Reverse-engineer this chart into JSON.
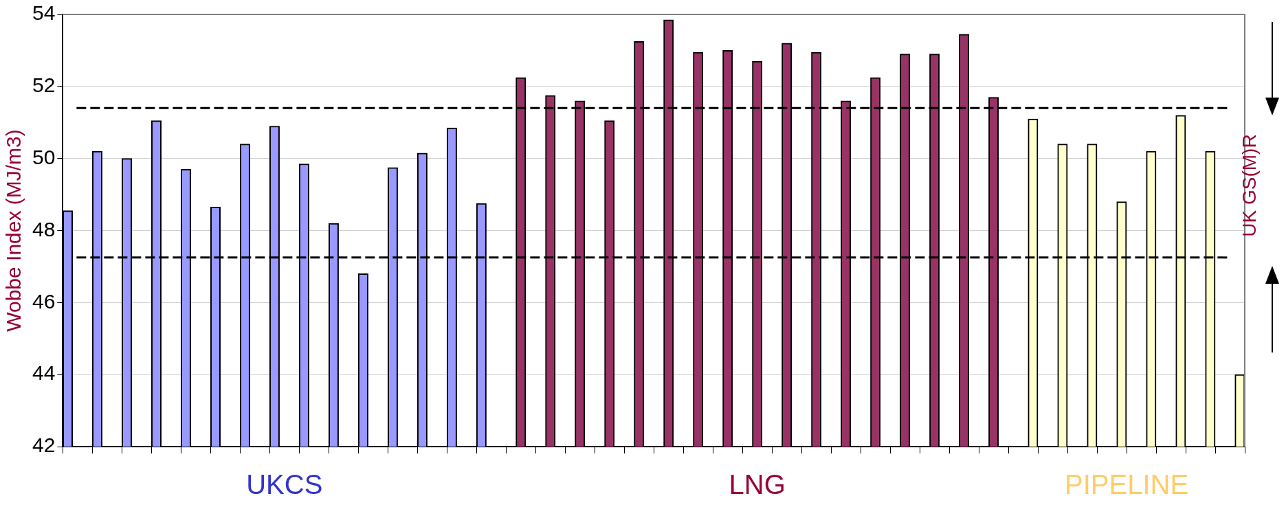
{
  "chart_data": {
    "type": "bar",
    "ylabel": "Wobbe Index (MJ/m3)",
    "categories": [
      null,
      null,
      null,
      null,
      null,
      null,
      null,
      null,
      null,
      null,
      null,
      null,
      null,
      null,
      null,
      null,
      null,
      null,
      null,
      null,
      null,
      null,
      null,
      null,
      null,
      null,
      null,
      null,
      null,
      null,
      null,
      null,
      null,
      null,
      null,
      null,
      null,
      null,
      null,
      null
    ],
    "series": [
      {
        "name": "UKCS",
        "color": "#9999ff",
        "values": [
          48.55,
          50.2,
          50.0,
          51.05,
          49.7,
          48.65,
          50.4,
          50.9,
          49.85,
          48.2,
          46.8,
          49.75,
          50.15,
          50.85,
          48.75,
          null,
          null,
          null,
          null,
          null,
          null,
          null,
          null,
          null,
          null,
          null,
          null,
          null,
          null,
          null,
          null,
          null,
          null,
          null,
          null,
          null,
          null,
          null,
          null,
          null
        ]
      },
      {
        "name": "LNG",
        "color": "#993366",
        "values": [
          null,
          null,
          null,
          null,
          null,
          null,
          null,
          null,
          null,
          null,
          null,
          null,
          null,
          null,
          null,
          52.25,
          51.75,
          51.6,
          51.05,
          53.25,
          53.85,
          52.95,
          53.0,
          52.7,
          53.2,
          52.95,
          51.6,
          52.25,
          52.9,
          52.9,
          53.45,
          51.7,
          null,
          null,
          null,
          null,
          null,
          null,
          null,
          null
        ]
      },
      {
        "name": "PIPELINE",
        "color": "#ffffcc",
        "values": [
          null,
          null,
          null,
          null,
          null,
          null,
          null,
          null,
          null,
          null,
          null,
          null,
          null,
          null,
          null,
          null,
          null,
          null,
          null,
          null,
          null,
          null,
          null,
          null,
          null,
          null,
          null,
          null,
          null,
          null,
          null,
          null,
          51.1,
          50.4,
          50.4,
          48.8,
          50.2,
          51.2,
          50.2,
          44.0
        ]
      }
    ],
    "ylim": [
      42,
      54
    ],
    "yticks": [
      42,
      44,
      46,
      48,
      50,
      52,
      54
    ],
    "grid": "y",
    "ref_lines": [
      {
        "axis": "y",
        "value": 51.4,
        "color": "#000000",
        "line_style": "dashed"
      },
      {
        "axis": "y",
        "value": 47.25,
        "color": "#000000",
        "line_style": "dashed"
      }
    ],
    "annotations": [
      "UK GS(M)R"
    ]
  }
}
